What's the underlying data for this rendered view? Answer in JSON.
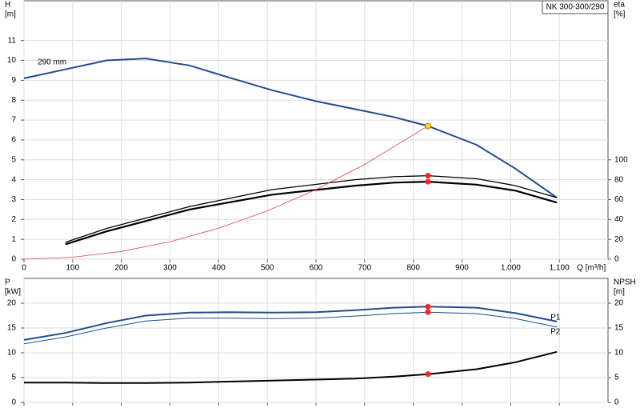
{
  "chart_data": [
    {
      "type": "line",
      "title": "NK 300-300/290",
      "ylabel": [
        "H",
        "[m]"
      ],
      "y2label": [
        "eta",
        "[%]"
      ],
      "xlabel": "Q [m³/h]",
      "xlim": [
        0,
        1200
      ],
      "xticks": [
        0,
        100,
        200,
        300,
        400,
        500,
        600,
        700,
        800,
        900,
        {
          "value": 1000,
          "label": "1,000"
        },
        {
          "value": 1100,
          "label": "1,100"
        }
      ],
      "ylim": [
        0,
        13
      ],
      "yticks": [
        0,
        1,
        2,
        3,
        4,
        5,
        6,
        7,
        8,
        9,
        10,
        11
      ],
      "y2lim": [
        0,
        260
      ],
      "y2ticks": [
        0,
        20,
        40,
        60,
        80,
        100
      ],
      "grid": true,
      "xtick_labels": true,
      "series": [
        {
          "name": "290 mm",
          "color": "#1f4e8c",
          "width": 2,
          "x": [
            0,
            85,
            170,
            250,
            340,
            420,
            510,
            600,
            680,
            760,
            830,
            930,
            1010,
            1095
          ],
          "values": [
            9.1,
            9.55,
            10.0,
            10.1,
            9.75,
            9.15,
            8.5,
            7.95,
            7.55,
            7.15,
            6.7,
            5.75,
            4.55,
            3.1
          ]
        },
        {
          "color": "#000000",
          "width": 1.3,
          "axis": "y2",
          "x": [
            85,
            170,
            340,
            510,
            680,
            760,
            830,
            930,
            1010,
            1095
          ],
          "values": [
            17,
            31,
            53,
            70,
            80,
            83,
            84,
            81,
            74,
            62
          ]
        },
        {
          "color": "#000000",
          "width": 2.2,
          "axis": "y2",
          "x": [
            85,
            170,
            340,
            510,
            680,
            760,
            830,
            930,
            1010,
            1095
          ],
          "values": [
            15,
            28,
            50,
            65,
            74,
            77,
            78,
            75,
            69,
            57
          ]
        },
        {
          "color": "#e84040",
          "width": 0.8,
          "x": [
            0,
            100,
            200,
            300,
            400,
            500,
            600,
            700,
            830
          ],
          "values": [
            0,
            0.1,
            0.39,
            0.88,
            1.56,
            2.43,
            3.5,
            4.77,
            6.7
          ]
        }
      ],
      "points": [
        {
          "x": 830,
          "y": 6.7,
          "color": "#ffd700"
        },
        {
          "x": 830,
          "y": 84,
          "axis": "y2",
          "color": "#ff2020"
        },
        {
          "x": 830,
          "y": 78,
          "axis": "y2",
          "color": "#ff2020"
        }
      ]
    },
    {
      "type": "line",
      "ylabel": [
        "P",
        "[kW]"
      ],
      "y2label": [
        "NPSH",
        "[m]"
      ],
      "xlim": [
        0,
        1200
      ],
      "xticks": [
        0,
        100,
        200,
        300,
        400,
        500,
        600,
        700,
        800,
        900,
        1000,
        1100
      ],
      "ylim": [
        0,
        25
      ],
      "yticks": [
        0,
        5,
        10,
        15,
        20
      ],
      "y2lim": [
        0,
        25
      ],
      "y2ticks": [
        0,
        5,
        10,
        15,
        20
      ],
      "grid": true,
      "xtick_labels": false,
      "series": [
        {
          "name": "P1",
          "color": "#1f4e8c",
          "width": 2,
          "x": [
            0,
            85,
            170,
            250,
            340,
            420,
            510,
            600,
            680,
            760,
            830,
            930,
            1010,
            1095
          ],
          "values": [
            12.6,
            14.0,
            16.0,
            17.5,
            18.1,
            18.2,
            18.1,
            18.2,
            18.6,
            19.1,
            19.3,
            19.1,
            18.0,
            16.3
          ]
        },
        {
          "name": "P2",
          "color": "#1f4e8c",
          "width": 1,
          "x": [
            0,
            85,
            170,
            250,
            340,
            420,
            510,
            600,
            680,
            760,
            830,
            930,
            1010,
            1095
          ],
          "values": [
            11.8,
            13.2,
            15.0,
            16.4,
            17.0,
            17.0,
            16.9,
            17.0,
            17.4,
            17.9,
            18.2,
            17.9,
            16.9,
            15.2
          ]
        },
        {
          "color": "#000000",
          "width": 2,
          "axis": "y2",
          "x": [
            0,
            85,
            170,
            250,
            340,
            420,
            510,
            600,
            680,
            760,
            830,
            930,
            1010,
            1095
          ],
          "values": [
            4.0,
            4.0,
            3.9,
            3.9,
            4.0,
            4.2,
            4.4,
            4.6,
            4.8,
            5.2,
            5.7,
            6.7,
            8.1,
            10.2
          ]
        }
      ],
      "points": [
        {
          "x": 830,
          "y": 19.3,
          "color": "#ff2020"
        },
        {
          "x": 830,
          "y": 18.2,
          "color": "#ff2020"
        },
        {
          "x": 830,
          "y": 5.7,
          "axis": "y2",
          "color": "#ff2020"
        }
      ]
    }
  ]
}
